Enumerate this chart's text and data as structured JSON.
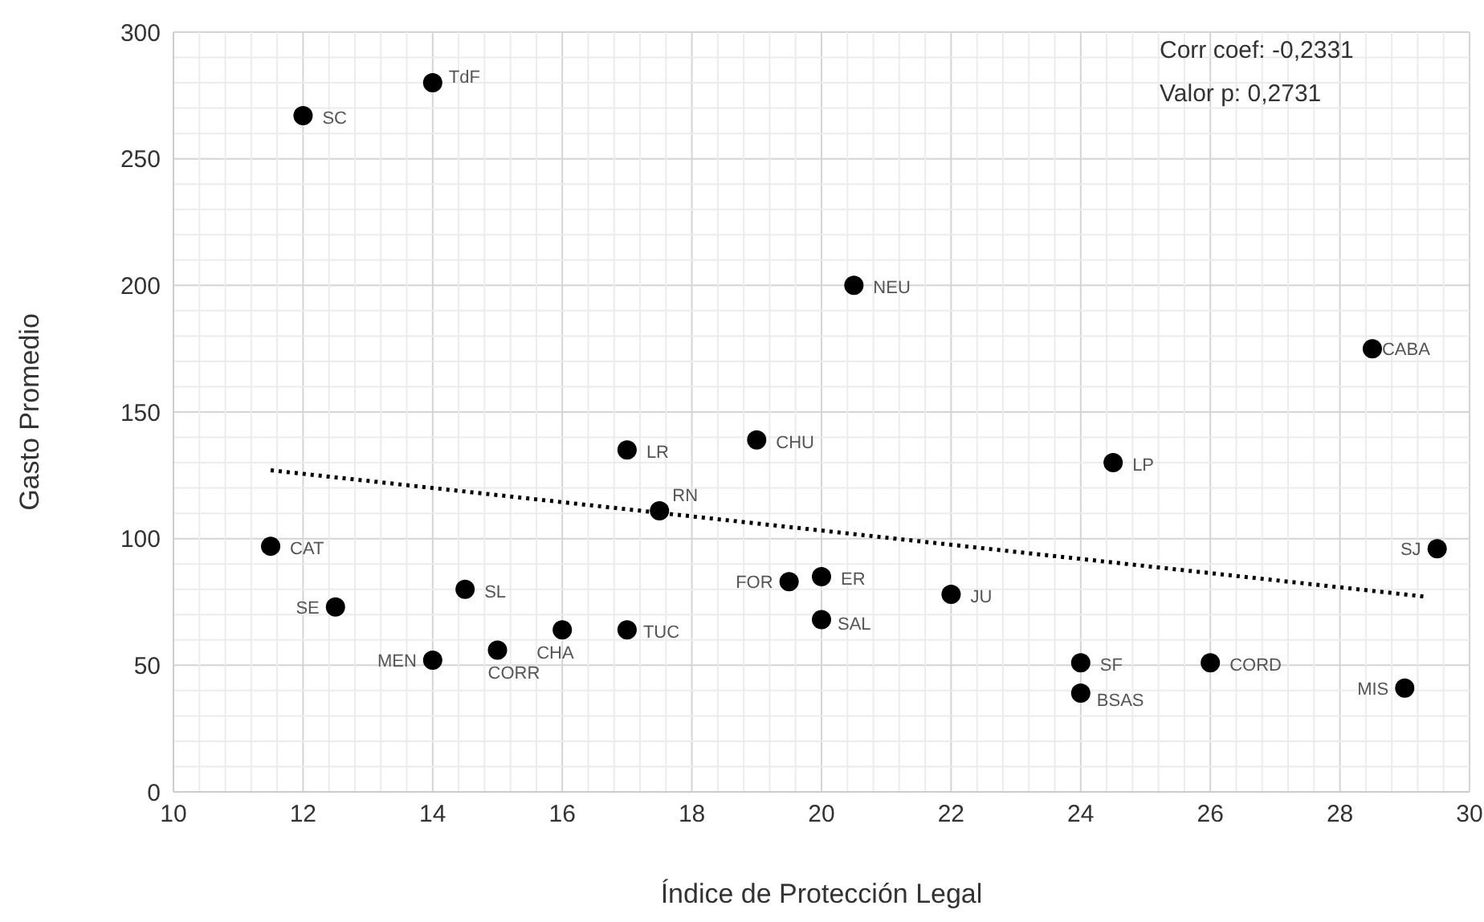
{
  "chart_data": {
    "type": "scatter",
    "xlabel": "Índice de Protección Legal",
    "ylabel": "Gasto Promedio",
    "xlim": [
      10,
      30
    ],
    "xticks": [
      10,
      12,
      14,
      16,
      18,
      20,
      22,
      24,
      26,
      28,
      30
    ],
    "ylim": [
      0,
      300
    ],
    "yticks": [
      0,
      50,
      100,
      150,
      200,
      250,
      300
    ],
    "grid": true,
    "legend": false,
    "marker": "circle",
    "series": [
      {
        "color": "#000000",
        "x": [
          12,
          14,
          17,
          19,
          20.5,
          28.5,
          24.5,
          11.5,
          17.5,
          14.5,
          12.5,
          14,
          15,
          16,
          17,
          19.5,
          20,
          20,
          22,
          24,
          24,
          26,
          29,
          29.5
        ],
        "values": [
          267,
          280,
          135,
          139,
          200,
          175,
          130,
          97,
          111,
          80,
          73,
          52,
          56,
          64,
          64,
          83,
          85,
          68,
          78,
          51,
          39,
          51,
          41,
          96
        ]
      },
      {
        "type": "line",
        "color": "#000000",
        "line_style": "dotted",
        "marker": "none",
        "x": [
          11.5,
          29.35
        ],
        "values": [
          127,
          77
        ]
      }
    ],
    "annotations": [
      "Corr coef: -0,2331",
      "Valor p: 0,2731",
      {
        "text": "SC",
        "x": 12,
        "y": 267
      },
      {
        "text": "TdF",
        "x": 14,
        "y": 280
      },
      {
        "text": "LR",
        "x": 17,
        "y": 135
      },
      {
        "text": "CHU",
        "x": 19,
        "y": 139
      },
      {
        "text": "NEU",
        "x": 20.5,
        "y": 200
      },
      {
        "text": "CABA",
        "x": 28.5,
        "y": 175
      },
      {
        "text": "LP",
        "x": 24.5,
        "y": 130
      },
      {
        "text": "CAT",
        "x": 11.5,
        "y": 97
      },
      {
        "text": "RN",
        "x": 17.5,
        "y": 111
      },
      {
        "text": "SL",
        "x": 14.5,
        "y": 80
      },
      {
        "text": "SE",
        "x": 12.5,
        "y": 73
      },
      {
        "text": "MEN",
        "x": 14,
        "y": 52
      },
      {
        "text": "CORR",
        "x": 15,
        "y": 56
      },
      {
        "text": "CHA",
        "x": 16,
        "y": 64
      },
      {
        "text": "TUC",
        "x": 17,
        "y": 64
      },
      {
        "text": "FOR",
        "x": 19.5,
        "y": 83
      },
      {
        "text": "ER",
        "x": 20,
        "y": 85
      },
      {
        "text": "SAL",
        "x": 20,
        "y": 68
      },
      {
        "text": "JU",
        "x": 22,
        "y": 78
      },
      {
        "text": "SF",
        "x": 24,
        "y": 51
      },
      {
        "text": "BSAS",
        "x": 24,
        "y": 39
      },
      {
        "text": "CORD",
        "x": 26,
        "y": 51
      },
      {
        "text": "MIS",
        "x": 29,
        "y": 41
      },
      {
        "text": "SJ",
        "x": 29.5,
        "y": 96
      }
    ]
  }
}
